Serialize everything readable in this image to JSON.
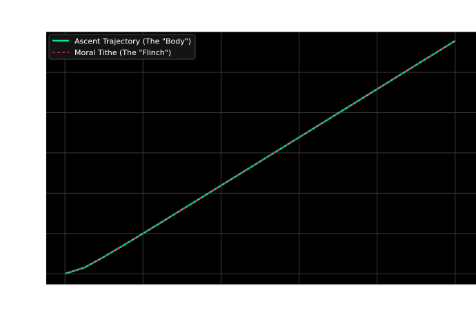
{
  "chart_data": {
    "type": "line",
    "title": "",
    "xlabel": "",
    "ylabel": "",
    "xlim": [
      -0.24,
      5.24
    ],
    "ylim": [
      -0.27,
      6.01
    ],
    "grid": true,
    "legend_placement": "upper-left",
    "background": "#000000",
    "x_gridlines": [
      0,
      1,
      2,
      3,
      4,
      5
    ],
    "y_gridlines": [
      0,
      1,
      2,
      3,
      4,
      5,
      6
    ],
    "x": [
      0,
      0.25,
      0.5,
      0.75,
      1,
      1.25,
      1.5,
      1.75,
      2,
      2.5,
      3,
      3.5,
      4,
      4.5,
      5
    ],
    "series": [
      {
        "name": "Ascent Trajectory (The \"Body\")",
        "color": "#00e5a0",
        "style": "solid",
        "values": [
          0,
          0.152,
          0.419,
          0.707,
          1.0,
          1.296,
          1.594,
          1.892,
          2.19,
          2.788,
          3.387,
          3.986,
          4.585,
          5.185,
          5.784
        ]
      },
      {
        "name": "Moral Tithe (The \"Flinch\")",
        "color": "#e0245e",
        "style": "dashed",
        "values": [
          0,
          0.152,
          0.419,
          0.707,
          1.0,
          1.296,
          1.594,
          1.892,
          2.19,
          2.788,
          3.387,
          3.986,
          4.585,
          5.185,
          5.784
        ]
      }
    ]
  }
}
